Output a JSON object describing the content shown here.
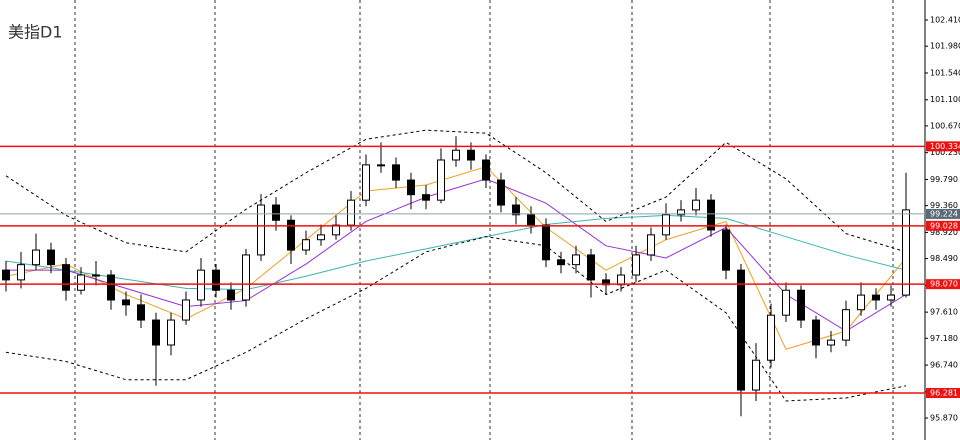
{
  "chart_data": {
    "type": "candlestick",
    "title": "美指D1",
    "ylim": [
      95.509,
      102.739
    ],
    "yticks": [
      {
        "value": 102.41,
        "label": "102.410"
      },
      {
        "value": 101.98,
        "label": "101.980"
      },
      {
        "value": 101.54,
        "label": "101.540"
      },
      {
        "value": 101.1,
        "label": "101.100"
      },
      {
        "value": 100.67,
        "label": "100.670"
      },
      {
        "value": 100.23,
        "label": "100.230"
      },
      {
        "value": 99.79,
        "label": "99.790"
      },
      {
        "value": 99.36,
        "label": "99.360"
      },
      {
        "value": 98.92,
        "label": "98.920"
      },
      {
        "value": 98.49,
        "label": "98.490"
      },
      {
        "value": 98.05,
        "label": "98.050"
      },
      {
        "value": 97.61,
        "label": "97.610"
      },
      {
        "value": 97.18,
        "label": "97.180"
      },
      {
        "value": 96.74,
        "label": "96.740"
      },
      {
        "value": 96.3,
        "label": "96.300"
      },
      {
        "value": 95.87,
        "label": "95.870"
      }
    ],
    "candles": {
      "open": [
        98.3,
        98.14,
        98.39,
        98.63,
        98.39,
        97.97,
        98.22,
        98.22,
        97.81,
        97.73,
        97.48,
        97.07,
        97.48,
        97.81,
        98.3,
        97.97,
        97.81,
        98.55,
        99.37,
        99.12,
        98.63,
        98.8,
        98.88,
        99.04,
        99.45,
        100.03,
        100.03,
        99.78,
        99.54,
        99.45,
        100.11,
        100.27,
        100.11,
        99.78,
        99.37,
        99.21,
        99.04,
        98.47,
        98.39,
        98.55,
        98.14,
        98.06,
        98.22,
        98.55,
        98.88,
        99.21,
        99.29,
        99.45,
        98.96,
        98.3,
        96.33,
        96.82,
        97.56,
        97.97,
        97.48,
        97.07,
        97.15,
        97.65,
        97.89,
        97.81,
        97.89
      ],
      "high": [
        98.45,
        98.6,
        98.9,
        98.75,
        98.5,
        98.35,
        98.45,
        98.3,
        97.95,
        97.9,
        97.6,
        97.6,
        97.95,
        98.5,
        98.4,
        98.1,
        98.65,
        99.55,
        99.5,
        99.2,
        98.95,
        99.05,
        99.2,
        99.6,
        100.2,
        100.4,
        100.15,
        99.9,
        99.7,
        100.3,
        100.5,
        100.4,
        100.2,
        99.9,
        99.5,
        99.35,
        99.15,
        98.6,
        98.7,
        98.65,
        98.25,
        98.35,
        98.7,
        99.0,
        99.4,
        99.45,
        99.65,
        99.55,
        99.05,
        98.4,
        97.1,
        97.75,
        98.1,
        98.05,
        97.55,
        97.3,
        97.8,
        98.1,
        98.0,
        98.05,
        99.9
      ],
      "low": [
        97.95,
        98.0,
        98.3,
        98.25,
        97.8,
        97.9,
        98.05,
        97.65,
        97.55,
        97.35,
        96.4,
        96.9,
        97.4,
        97.7,
        97.85,
        97.65,
        97.7,
        98.45,
        98.95,
        98.4,
        98.55,
        98.7,
        98.8,
        98.95,
        99.35,
        99.9,
        99.65,
        99.3,
        99.3,
        99.4,
        100.0,
        99.95,
        99.65,
        99.25,
        99.05,
        98.9,
        98.35,
        98.25,
        98.25,
        97.85,
        97.9,
        97.95,
        98.1,
        98.45,
        98.8,
        99.1,
        99.2,
        98.85,
        98.15,
        95.9,
        96.15,
        96.7,
        97.45,
        97.35,
        96.85,
        96.95,
        97.05,
        97.55,
        97.65,
        97.7,
        97.85
      ],
      "close": [
        98.14,
        98.39,
        98.63,
        98.39,
        97.97,
        98.22,
        98.22,
        97.81,
        97.73,
        97.48,
        97.07,
        97.48,
        97.81,
        98.3,
        97.97,
        97.81,
        98.55,
        99.37,
        99.12,
        98.63,
        98.8,
        98.88,
        99.04,
        99.45,
        100.03,
        100.03,
        99.78,
        99.54,
        99.45,
        100.11,
        100.27,
        100.11,
        99.78,
        99.37,
        99.21,
        99.04,
        98.47,
        98.39,
        98.55,
        98.14,
        98.06,
        98.22,
        98.55,
        98.88,
        99.21,
        99.29,
        99.45,
        98.96,
        98.3,
        96.33,
        96.82,
        97.56,
        97.97,
        97.48,
        97.07,
        97.15,
        97.65,
        97.89,
        97.81,
        97.89,
        99.29
      ]
    },
    "series": [
      {
        "color": "#f0a020",
        "x": [
          0,
          4,
          8,
          12,
          16,
          20,
          24,
          28,
          32,
          36,
          40,
          44,
          48,
          52,
          56,
          60
        ],
        "values": [
          98.2,
          98.4,
          97.9,
          97.5,
          98.0,
          98.8,
          99.6,
          99.7,
          100.0,
          99.0,
          98.3,
          98.8,
          99.1,
          97.0,
          97.3,
          98.5
        ]
      },
      {
        "color": "#9a30d8",
        "x": [
          0,
          4,
          8,
          12,
          16,
          20,
          24,
          28,
          32,
          36,
          40,
          44,
          48,
          52,
          56,
          60
        ],
        "values": [
          98.3,
          98.3,
          98.0,
          97.7,
          97.8,
          98.4,
          99.1,
          99.5,
          99.8,
          99.4,
          98.7,
          98.5,
          99.0,
          97.9,
          97.3,
          97.9
        ]
      },
      {
        "color": "#3cb4b4",
        "x": [
          0,
          4,
          8,
          12,
          16,
          20,
          24,
          28,
          32,
          36,
          40,
          44,
          48,
          52,
          56,
          60
        ],
        "values": [
          98.45,
          98.3,
          98.15,
          98.0,
          97.98,
          98.2,
          98.45,
          98.65,
          98.85,
          99.05,
          99.15,
          99.2,
          99.15,
          98.85,
          98.55,
          98.3
        ]
      },
      {
        "color": "#000000",
        "dashed": true,
        "x": [
          0,
          4,
          8,
          12,
          16,
          20,
          24,
          28,
          32,
          36,
          40,
          44,
          48,
          52,
          56,
          60
        ],
        "values": [
          99.85,
          99.2,
          98.75,
          98.6,
          99.3,
          99.9,
          100.45,
          100.6,
          100.55,
          99.9,
          99.1,
          99.5,
          100.4,
          99.8,
          98.9,
          98.6
        ]
      },
      {
        "color": "#000000",
        "dashed": true,
        "x": [
          0,
          4,
          8,
          12,
          16,
          20,
          24,
          28,
          32,
          36,
          40,
          44,
          48,
          52,
          56,
          60
        ],
        "values": [
          96.95,
          96.8,
          96.5,
          96.5,
          96.95,
          97.5,
          98.0,
          98.6,
          98.85,
          98.7,
          97.9,
          98.3,
          97.6,
          96.15,
          96.2,
          96.4
        ]
      }
    ],
    "levels": [
      {
        "value": 100.334,
        "label": "100.334"
      },
      {
        "value": 99.028,
        "label": "99.028"
      },
      {
        "value": 98.07,
        "label": "98.070"
      },
      {
        "value": 96.281,
        "label": "96.281"
      }
    ],
    "level_color": "#ee1111",
    "current": {
      "value": 99.224,
      "label": "99.224"
    }
  }
}
